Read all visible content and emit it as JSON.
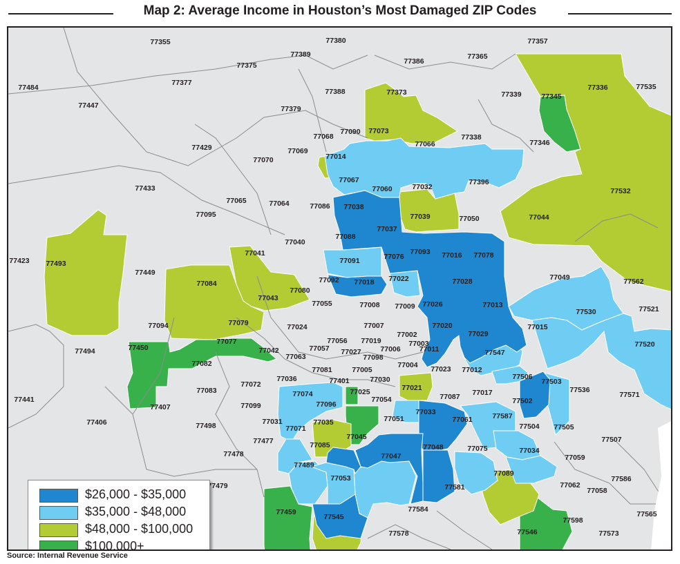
{
  "title": "Map 2: Average Income in Houston’s Most Damaged ZIP Codes",
  "source": "Source: Internal Revenue Service",
  "colors": {
    "tier1": "#1f87cf",
    "tier2": "#6fcdf3",
    "tier3": "#b3cc34",
    "tier4": "#39b14a",
    "base": "#e4e5e6",
    "background": "#d9dadb",
    "border": "#8a8c8e"
  },
  "legend": [
    {
      "label": "$26,000 - $35,000",
      "color": "#1f87cf"
    },
    {
      "label": "$35,000 - $48,000",
      "color": "#6fcdf3"
    },
    {
      "label": "$48,000 - $100,000",
      "color": "#b3cc34"
    },
    {
      "label": "$100,000+",
      "color": "#39b14a"
    }
  ],
  "zip_labels": [
    "77355",
    "77380",
    "77357",
    "77389",
    "77386",
    "77365",
    "77375",
    "77484",
    "77377",
    "77388",
    "77373",
    "77339",
    "77345",
    "77336",
    "77535",
    "77447",
    "77379",
    "77090",
    "77073",
    "77338",
    "77068",
    "77066",
    "77346",
    "77429",
    "77069",
    "77014",
    "77070",
    "77067",
    "77060",
    "77032",
    "77396",
    "77532",
    "77433",
    "77065",
    "77064",
    "77086",
    "77038",
    "77039",
    "77050",
    "77044",
    "77095",
    "77037",
    "77088",
    "77040",
    "77041",
    "77093",
    "77016",
    "77078",
    "77423",
    "77493",
    "77091",
    "77076",
    "77049",
    "77562",
    "77449",
    "77084",
    "77092",
    "77018",
    "77022",
    "77028",
    "77080",
    "77043",
    "77055",
    "77008",
    "77009",
    "77026",
    "77013",
    "77530",
    "77521",
    "77094",
    "77079",
    "77024",
    "77007",
    "77020",
    "77029",
    "77015",
    "77077",
    "77002",
    "77520",
    "77450",
    "77056",
    "77019",
    "77003",
    "77494",
    "77042",
    "77057",
    "77027",
    "77006",
    "77011",
    "77547",
    "77082",
    "77063",
    "77098",
    "77004",
    "77023",
    "77012",
    "77506",
    "77503",
    "77036",
    "77081",
    "77005",
    "77536",
    "77072",
    "77074",
    "77401",
    "77030",
    "77021",
    "77571",
    "77441",
    "77025",
    "77017",
    "77083",
    "77054",
    "77087",
    "77502",
    "77407",
    "77099",
    "77096",
    "77406",
    "77498",
    "77031",
    "77035",
    "77051",
    "77033",
    "77587",
    "77061",
    "77071",
    "77504",
    "77505",
    "77507",
    "77477",
    "77085",
    "77045",
    "77478",
    "77048",
    "77075",
    "77034",
    "77059",
    "77489",
    "77047",
    "77089",
    "77053",
    "77586",
    "77479",
    "77062",
    "77058",
    "77581",
    "77584",
    "77459",
    "77545",
    "77598",
    "77565",
    "77578",
    "77546",
    "77573"
  ],
  "zip_groups": {
    "tier1": [
      "77067",
      "77060",
      "77038",
      "77039",
      "77050",
      "77037",
      "77093",
      "77016",
      "77078",
      "77091",
      "77022",
      "77028",
      "77026",
      "77013",
      "77020",
      "77506",
      "77087",
      "77051",
      "77033",
      "77045",
      "77048",
      "77053"
    ],
    "tier2": [
      "77090",
      "77073",
      "77338",
      "77066",
      "77014",
      "77088",
      "77076",
      "77049",
      "77530",
      "77015",
      "77520",
      "77029",
      "77547",
      "77503",
      "77036",
      "77074",
      "77021",
      "77017",
      "77502",
      "77587",
      "77504",
      "77071",
      "77085",
      "77034",
      "77075",
      "77047",
      "77489",
      "77031"
    ],
    "tier3": [
      "77373",
      "77357",
      "77336",
      "77068",
      "77032",
      "77532",
      "77044",
      "77493",
      "77041",
      "77084",
      "77004",
      "77096",
      "77035",
      "77089",
      "77545",
      "77401"
    ],
    "tier4": [
      "77345",
      "77094",
      "77079",
      "77450",
      "77025",
      "77459",
      "77546"
    ]
  }
}
